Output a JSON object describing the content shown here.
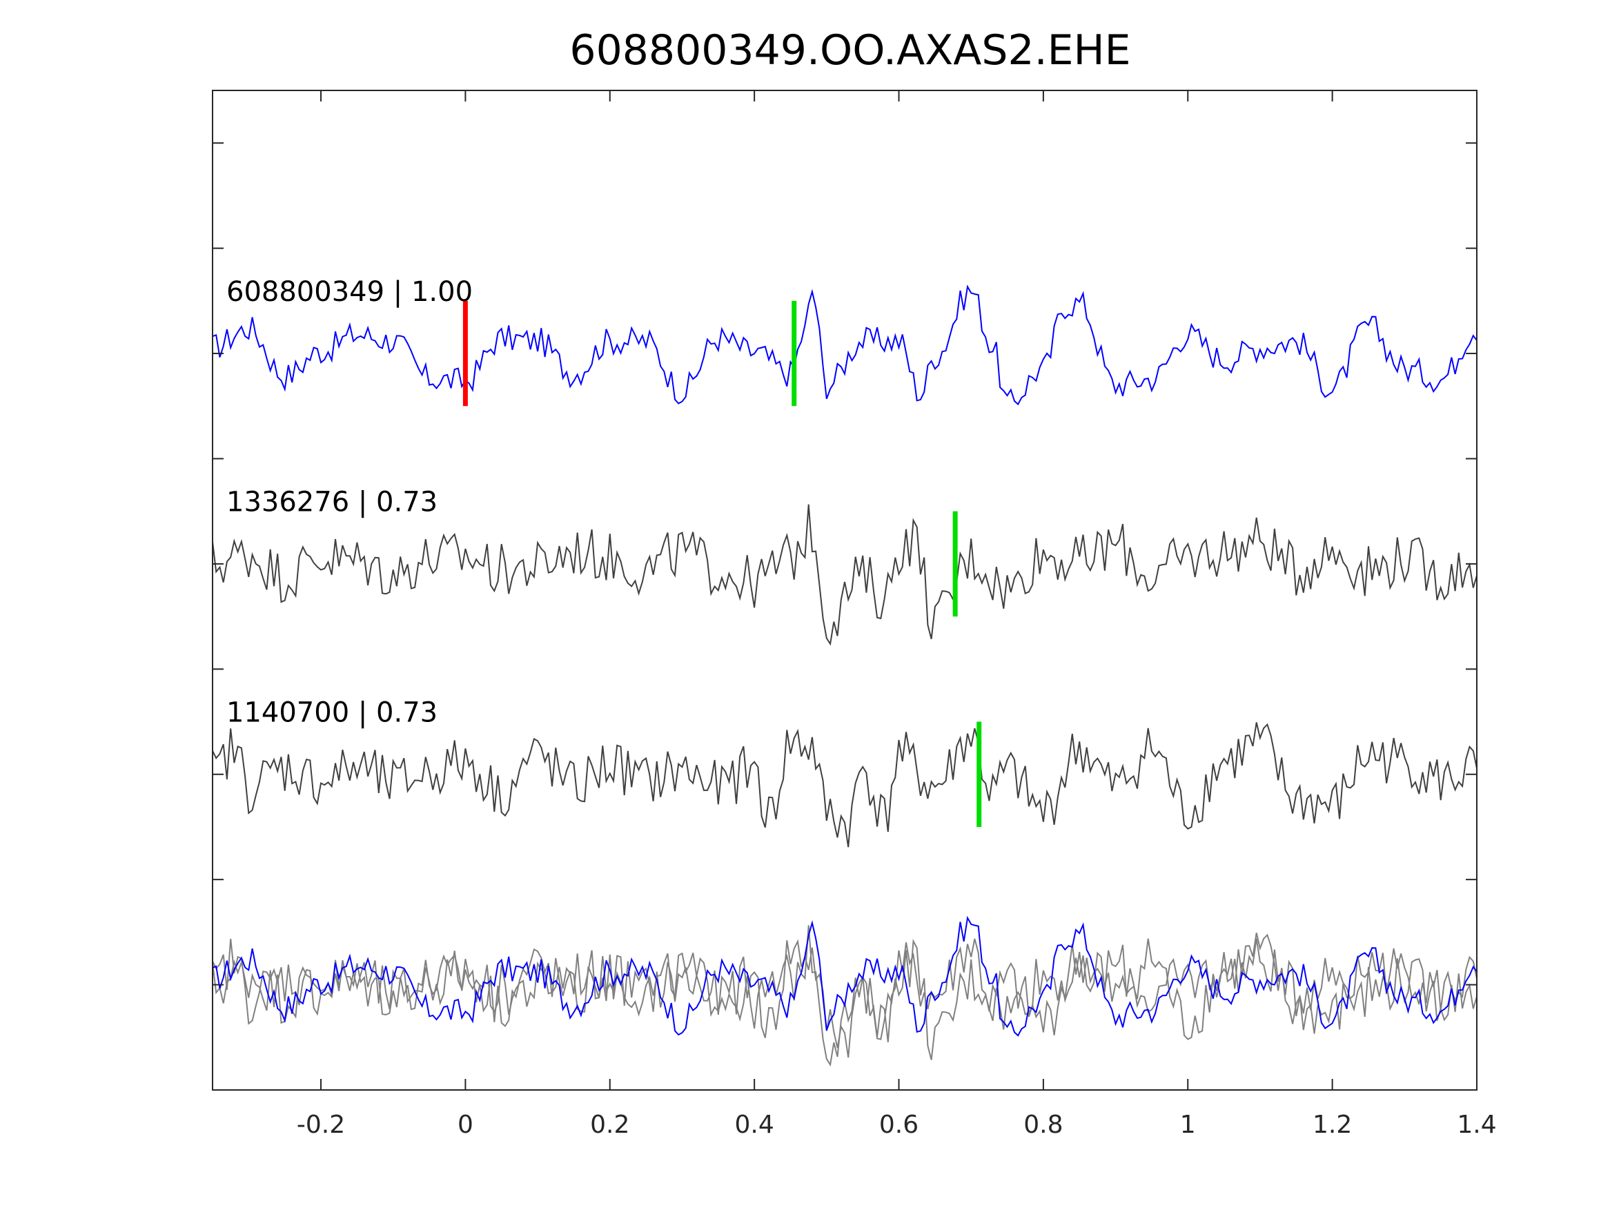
{
  "chart_data": {
    "type": "line",
    "title": "608800349.OO.AXAS2.EHE",
    "xlabel": "",
    "ylabel": "",
    "xlim": [
      -0.35,
      1.4
    ],
    "xticks": [
      -0.2,
      0,
      0.2,
      0.4,
      0.6,
      0.8,
      1,
      1.2,
      1.4
    ],
    "xtick_labels": [
      "-0.2",
      "0",
      "0.2",
      "0.4",
      "0.6",
      "0.8",
      "1",
      "1.2",
      "1.4"
    ],
    "ylim": [
      -0.5,
      4.25
    ],
    "yticks": [
      0,
      0.5,
      1,
      1.5,
      2,
      2.5,
      3,
      3.5,
      4
    ],
    "grid": false,
    "legend": "none",
    "colors": {
      "main": "#0000ff",
      "other": "#404040",
      "overlay": "#808080",
      "p_pick": "#ff0000",
      "s_pick": "#00dd00",
      "axis": "#262626"
    },
    "series": [
      {
        "label": "608800349 | 1.00",
        "offset": 3,
        "color": "#0000ff",
        "x": [
          -0.35,
          -0.3,
          -0.25,
          -0.2,
          -0.15,
          -0.1,
          -0.05,
          0,
          0.05,
          0.1,
          0.15,
          0.2,
          0.25,
          0.3,
          0.35,
          0.4,
          0.45,
          0.47,
          0.48,
          0.5,
          0.55,
          0.6,
          0.63,
          0.65,
          0.7,
          0.73,
          0.75,
          0.8,
          0.83,
          0.85,
          0.9,
          0.95,
          1,
          1.05,
          1.1,
          1.15,
          1.2,
          1.25,
          1.3,
          1.35,
          1.4
        ],
        "y": [
          0.05,
          0.2,
          -0.18,
          0.02,
          0.15,
          0.1,
          -0.2,
          -0.22,
          0.12,
          0.1,
          -0.16,
          0.1,
          0.1,
          -0.3,
          0.12,
          0.01,
          -0.16,
          0.18,
          0.5,
          -0.25,
          0.1,
          0.1,
          -0.32,
          -0.02,
          0.5,
          0.05,
          -0.4,
          -0.12,
          0.38,
          0.4,
          -0.25,
          -0.2,
          0.15,
          -0.05,
          0.05,
          0.1,
          -0.28,
          0.22,
          -0.12,
          -0.2,
          0.2
        ]
      },
      {
        "label": "1336276 | 0.73",
        "offset": 2,
        "color": "#404040",
        "x": [
          -0.35,
          -0.3,
          -0.25,
          -0.2,
          -0.15,
          -0.1,
          -0.05,
          0,
          0.05,
          0.1,
          0.15,
          0.2,
          0.25,
          0.3,
          0.35,
          0.4,
          0.45,
          0.48,
          0.5,
          0.55,
          0.58,
          0.6,
          0.62,
          0.65,
          0.7,
          0.75,
          0.8,
          0.85,
          0.9,
          0.95,
          1,
          1.05,
          1.1,
          1.15,
          1.2,
          1.25,
          1.3,
          1.35,
          1.4
        ],
        "y": [
          0,
          0.08,
          -0.1,
          0.05,
          0.02,
          -0.08,
          0.04,
          0.06,
          -0.05,
          -0.02,
          0.1,
          0.05,
          -0.05,
          0.1,
          -0.05,
          -0.15,
          0.05,
          0.28,
          -0.45,
          -0.1,
          -0.28,
          0.12,
          0.2,
          -0.45,
          0.05,
          -0.2,
          0.08,
          0.02,
          0.15,
          -0.1,
          0.05,
          0.1,
          0.18,
          -0.05,
          0.1,
          -0.05,
          0.05,
          -0.1,
          0
        ]
      },
      {
        "label": "1140700 | 0.73",
        "offset": 1,
        "color": "#404040",
        "x": [
          -0.35,
          -0.32,
          -0.3,
          -0.25,
          -0.2,
          -0.15,
          -0.1,
          -0.05,
          0,
          0.05,
          0.1,
          0.15,
          0.2,
          0.25,
          0.3,
          0.35,
          0.4,
          0.42,
          0.45,
          0.48,
          0.5,
          0.53,
          0.55,
          0.58,
          0.6,
          0.65,
          0.7,
          0.73,
          0.75,
          0.8,
          0.85,
          0.9,
          0.95,
          1,
          1.05,
          1.1,
          1.15,
          1.2,
          1.25,
          1.3,
          1.35,
          1.4
        ],
        "y": [
          0,
          0.2,
          -0.1,
          0.05,
          -0.05,
          0.05,
          -0.08,
          0.02,
          0.1,
          -0.15,
          0.15,
          -0.1,
          0.08,
          -0.05,
          0.03,
          -0.1,
          0.05,
          -0.35,
          0.25,
          0.22,
          -0.3,
          -0.4,
          0.05,
          -0.35,
          0.15,
          -0.1,
          0.3,
          -0.15,
          0.02,
          -0.3,
          0.2,
          -0.1,
          0.2,
          -0.3,
          0.1,
          0.25,
          -0.2,
          -0.25,
          0.15,
          0.1,
          -0.05,
          0.05
        ]
      }
    ],
    "overlay_offset": 0,
    "picks": [
      {
        "series": 0,
        "x": 0.0,
        "color": "#ff0000",
        "phase": "P"
      },
      {
        "series": 0,
        "x": 0.455,
        "color": "#00dd00",
        "phase": "S"
      },
      {
        "series": 1,
        "x": 0.678,
        "color": "#00dd00",
        "phase": "S"
      },
      {
        "series": 2,
        "x": 0.711,
        "color": "#00dd00",
        "phase": "S"
      }
    ]
  }
}
